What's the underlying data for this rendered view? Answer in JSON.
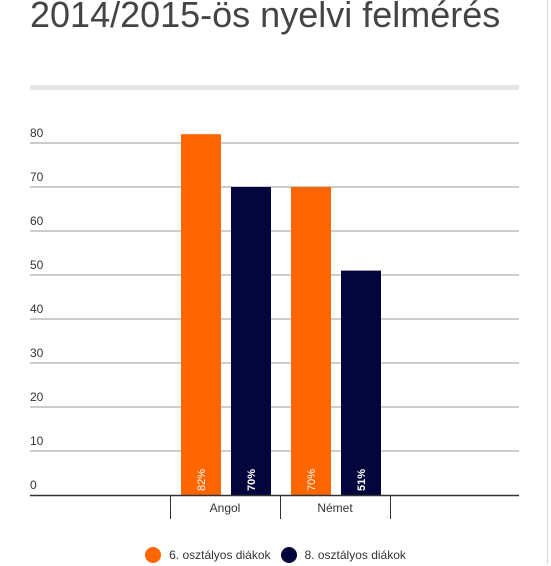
{
  "title": "2014/2015-ös nyelvi felmérés",
  "chart_data": {
    "type": "bar",
    "categories": [
      "Angol",
      "Német"
    ],
    "series": [
      {
        "name": "6. osztályos diákok",
        "values": [
          82,
          70
        ],
        "labels": [
          "82%",
          "70%"
        ],
        "color": "#ff6600"
      },
      {
        "name": "8. osztályos diákok",
        "values": [
          70,
          51
        ],
        "labels": [
          "70%",
          "51%"
        ],
        "color": "#05053d"
      }
    ],
    "y_ticks": [
      "0",
      "10",
      "20",
      "30",
      "40",
      "50",
      "60",
      "70",
      "80"
    ],
    "ylim": [
      0,
      80
    ],
    "grid": true,
    "legend_position": "bottom",
    "colors": {
      "grid": "#999999",
      "axis": "#333333",
      "tick_text": "#333333"
    }
  }
}
